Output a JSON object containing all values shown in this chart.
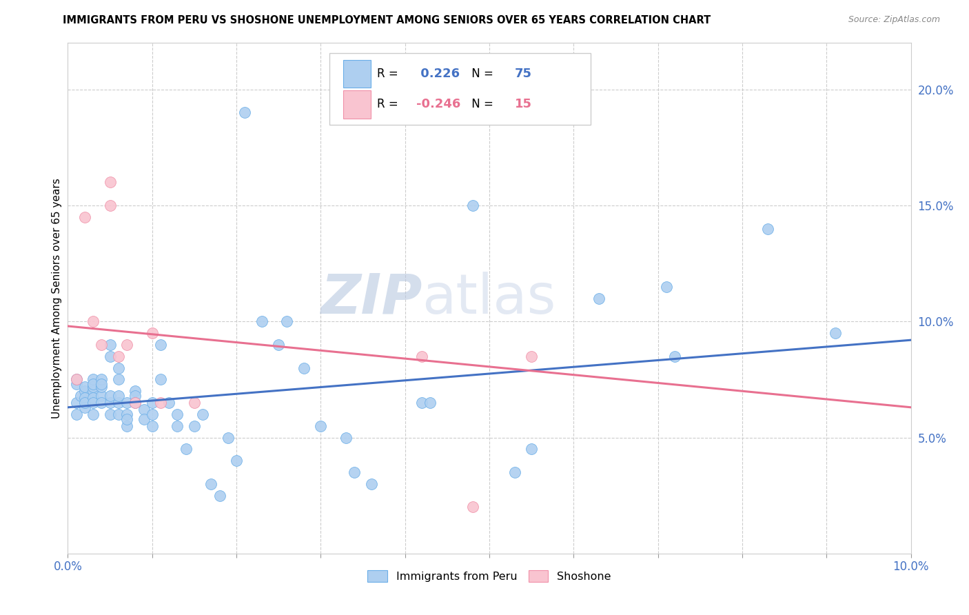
{
  "title": "IMMIGRANTS FROM PERU VS SHOSHONE UNEMPLOYMENT AMONG SENIORS OVER 65 YEARS CORRELATION CHART",
  "source": "Source: ZipAtlas.com",
  "ylabel": "Unemployment Among Seniors over 65 years",
  "xlim": [
    0,
    0.1
  ],
  "ylim": [
    0,
    0.22
  ],
  "xtick_positions": [
    0.0,
    0.01,
    0.02,
    0.03,
    0.04,
    0.05,
    0.06,
    0.07,
    0.08,
    0.09,
    0.1
  ],
  "xtick_labels": [
    "0.0%",
    "",
    "",
    "",
    "",
    "",
    "",
    "",
    "",
    "",
    "10.0%"
  ],
  "yticks_right": [
    0.05,
    0.1,
    0.15,
    0.2
  ],
  "ytick_labels_right": [
    "5.0%",
    "10.0%",
    "15.0%",
    "20.0%"
  ],
  "blue_color": "#aecff0",
  "blue_edge_color": "#6aaee8",
  "blue_line_color": "#4472c4",
  "pink_color": "#f9c4d0",
  "pink_edge_color": "#f090a8",
  "pink_line_color": "#e87090",
  "R_blue": 0.226,
  "N_blue": 75,
  "R_pink": -0.246,
  "N_pink": 15,
  "watermark": "ZIPatlas",
  "watermark_color": "#ccd5e8",
  "legend_label_blue": "Immigrants from Peru",
  "legend_label_pink": "Shoshone",
  "blue_points_x": [
    0.001,
    0.001,
    0.001,
    0.001,
    0.0015,
    0.002,
    0.002,
    0.002,
    0.002,
    0.002,
    0.003,
    0.003,
    0.003,
    0.003,
    0.003,
    0.003,
    0.003,
    0.004,
    0.004,
    0.004,
    0.004,
    0.004,
    0.005,
    0.005,
    0.005,
    0.005,
    0.005,
    0.006,
    0.006,
    0.006,
    0.006,
    0.006,
    0.007,
    0.007,
    0.007,
    0.007,
    0.008,
    0.008,
    0.008,
    0.009,
    0.009,
    0.01,
    0.01,
    0.01,
    0.011,
    0.011,
    0.012,
    0.013,
    0.013,
    0.014,
    0.015,
    0.016,
    0.017,
    0.018,
    0.019,
    0.02,
    0.021,
    0.023,
    0.025,
    0.026,
    0.028,
    0.03,
    0.033,
    0.034,
    0.036,
    0.042,
    0.043,
    0.048,
    0.053,
    0.055,
    0.063,
    0.071,
    0.072,
    0.083,
    0.091
  ],
  "blue_points_y": [
    0.065,
    0.073,
    0.075,
    0.06,
    0.068,
    0.07,
    0.072,
    0.067,
    0.063,
    0.065,
    0.07,
    0.072,
    0.075,
    0.067,
    0.073,
    0.06,
    0.065,
    0.068,
    0.072,
    0.075,
    0.065,
    0.073,
    0.06,
    0.065,
    0.068,
    0.085,
    0.09,
    0.06,
    0.065,
    0.068,
    0.075,
    0.08,
    0.065,
    0.06,
    0.055,
    0.058,
    0.07,
    0.068,
    0.065,
    0.062,
    0.058,
    0.065,
    0.055,
    0.06,
    0.075,
    0.09,
    0.065,
    0.06,
    0.055,
    0.045,
    0.055,
    0.06,
    0.03,
    0.025,
    0.05,
    0.04,
    0.19,
    0.1,
    0.09,
    0.1,
    0.08,
    0.055,
    0.05,
    0.035,
    0.03,
    0.065,
    0.065,
    0.15,
    0.035,
    0.045,
    0.11,
    0.115,
    0.085,
    0.14,
    0.095
  ],
  "pink_points_x": [
    0.001,
    0.002,
    0.003,
    0.004,
    0.005,
    0.005,
    0.006,
    0.007,
    0.008,
    0.01,
    0.011,
    0.015,
    0.042,
    0.048,
    0.055
  ],
  "pink_points_y": [
    0.075,
    0.145,
    0.1,
    0.09,
    0.15,
    0.16,
    0.085,
    0.09,
    0.065,
    0.095,
    0.065,
    0.065,
    0.085,
    0.02,
    0.085
  ],
  "blue_trend_x": [
    0.0,
    0.1
  ],
  "blue_trend_y_start": 0.063,
  "blue_trend_y_end": 0.092,
  "pink_trend_x": [
    0.0,
    0.1
  ],
  "pink_trend_y_start": 0.098,
  "pink_trend_y_end": 0.063
}
